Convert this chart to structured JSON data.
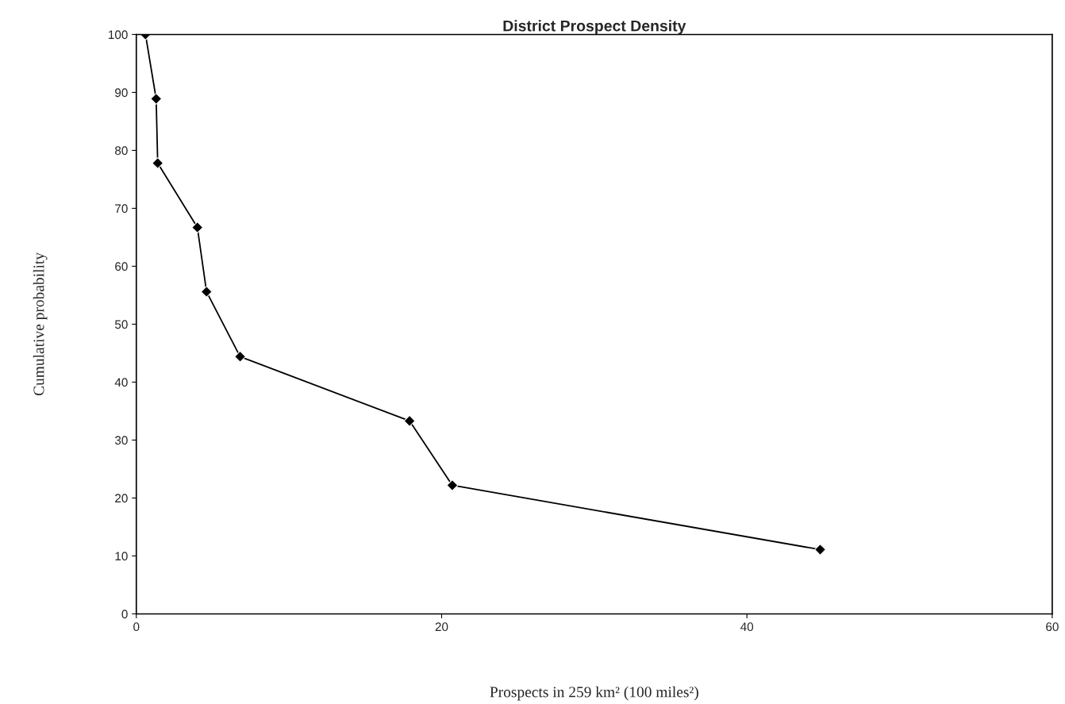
{
  "chart_data": {
    "type": "line",
    "title": "District Prospect Density",
    "xlabel": "Prospects in 259 km² (100 miles²)",
    "ylabel": "Cumulative probability",
    "x": [
      0.6,
      1.3,
      1.4,
      4.0,
      4.6,
      6.8,
      17.9,
      20.7,
      44.8
    ],
    "series": [
      {
        "color": "#000000",
        "values": [
          100,
          88.9,
          77.8,
          66.7,
          55.6,
          44.4,
          33.3,
          22.2,
          11.1
        ]
      }
    ],
    "xlim": [
      0,
      60
    ],
    "xticks": [
      0,
      20,
      40,
      60
    ],
    "ylim": [
      0,
      100
    ],
    "yticks": [
      0,
      10,
      20,
      30,
      40,
      50,
      60,
      70,
      80,
      90,
      100
    ],
    "grid": false,
    "legend": false,
    "marker": "diamond",
    "line_style": "solid"
  }
}
